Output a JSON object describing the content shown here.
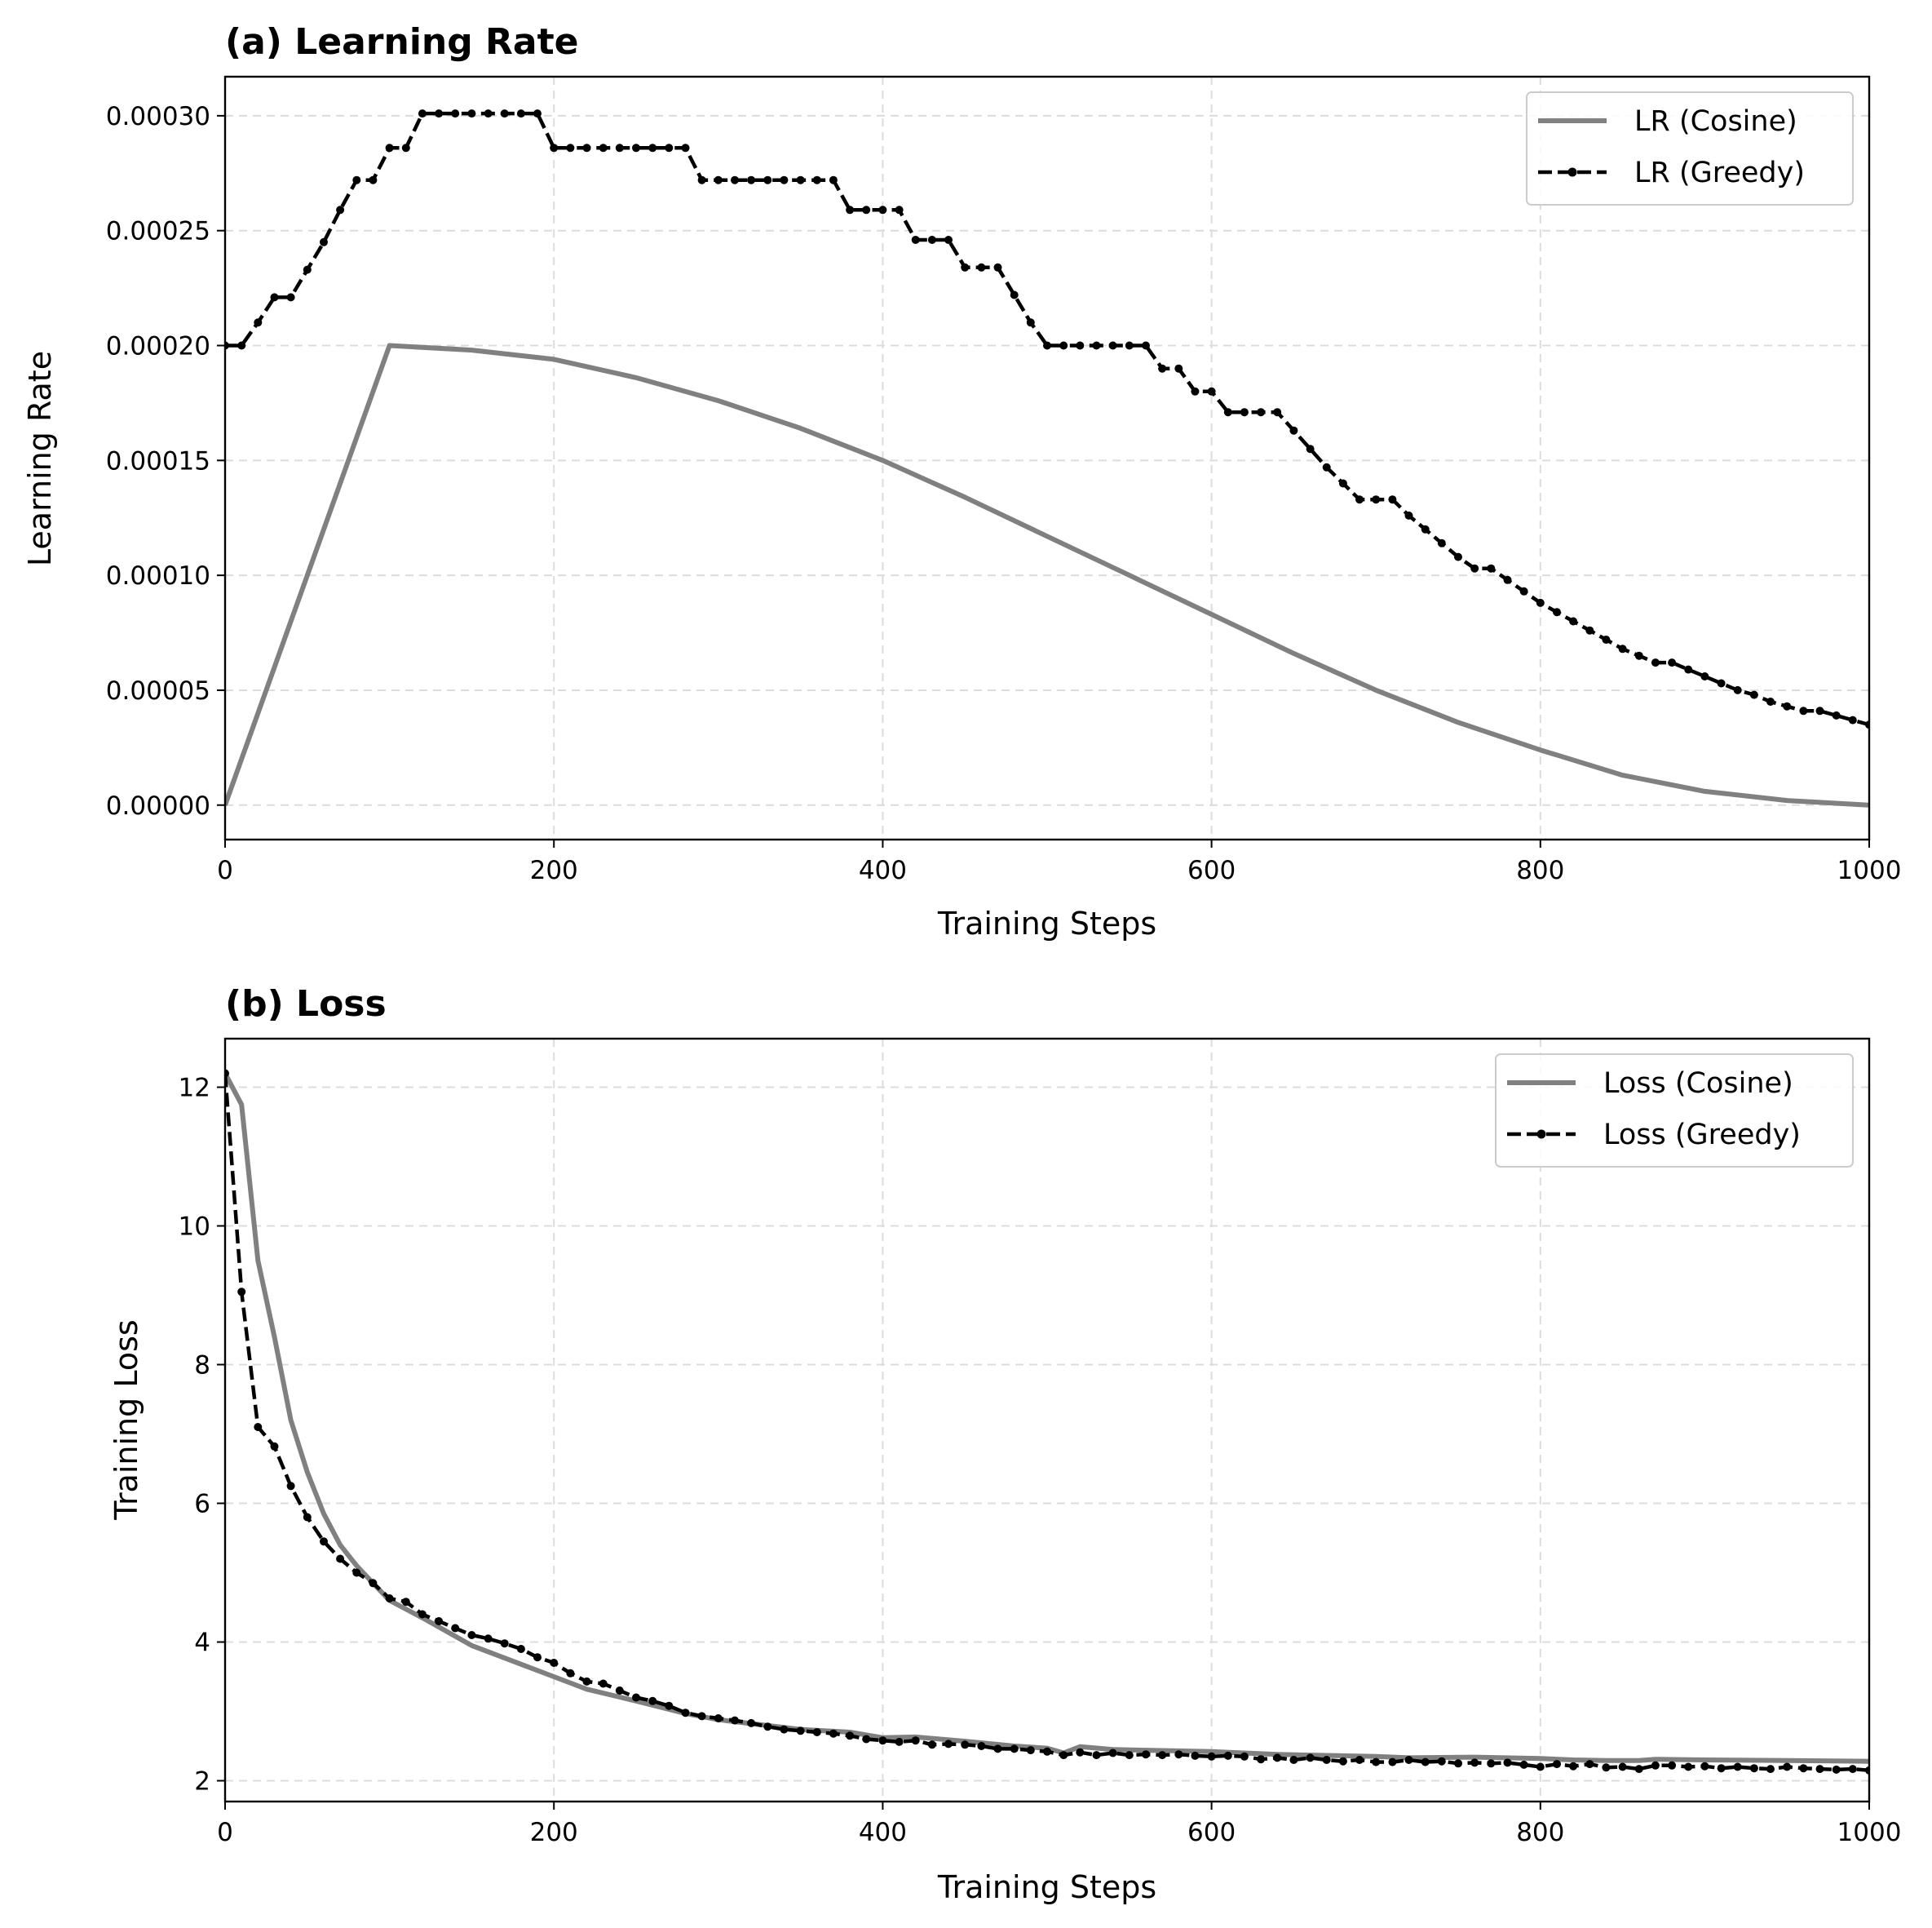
{
  "chart_data": [
    {
      "type": "line",
      "title": "(a) Learning Rate",
      "xlabel": "Training Steps",
      "ylabel": "Learning Rate",
      "xlim": [
        0,
        1000
      ],
      "ylim": [
        -1.5e-05,
        0.000317
      ],
      "grid": true,
      "legend_position": "top-right",
      "xticks": [
        0,
        200,
        400,
        600,
        800,
        1000
      ],
      "xtick_labels": [
        "0",
        "200",
        "400",
        "600",
        "800",
        "1000"
      ],
      "yticks": [
        0,
        5e-05,
        0.0001,
        0.00015,
        0.0002,
        0.00025,
        0.0003
      ],
      "ytick_labels": [
        "0.00000",
        "0.00005",
        "0.00010",
        "0.00015",
        "0.00020",
        "0.00025",
        "0.00030"
      ],
      "series": [
        {
          "name": "LR (Cosine)",
          "style": "solid",
          "color": "#808080",
          "x": [
            0,
            100,
            150,
            200,
            250,
            300,
            350,
            400,
            450,
            500,
            550,
            600,
            650,
            700,
            750,
            800,
            850,
            900,
            950,
            1000
          ],
          "y": [
            0,
            0.0002,
            0.000198,
            0.000194,
            0.000186,
            0.000176,
            0.000164,
            0.00015,
            0.000134,
            0.000117,
            0.0001,
            8.3e-05,
            6.6e-05,
            5e-05,
            3.6e-05,
            2.4e-05,
            1.3e-05,
            6e-06,
            2e-06,
            0
          ]
        },
        {
          "name": "LR (Greedy)",
          "style": "dashed-markers",
          "color": "#000000",
          "x": [
            0,
            10,
            20,
            30,
            40,
            50,
            60,
            70,
            80,
            90,
            100,
            110,
            120,
            130,
            140,
            150,
            160,
            170,
            180,
            190,
            200,
            210,
            220,
            230,
            240,
            250,
            260,
            270,
            280,
            290,
            300,
            310,
            320,
            330,
            340,
            350,
            360,
            370,
            380,
            390,
            400,
            410,
            420,
            430,
            440,
            450,
            460,
            470,
            480,
            490,
            500,
            510,
            520,
            530,
            540,
            550,
            560,
            570,
            580,
            590,
            600,
            610,
            620,
            630,
            640,
            650,
            660,
            670,
            680,
            690,
            700,
            710,
            720,
            730,
            740,
            750,
            760,
            770,
            780,
            790,
            800,
            810,
            820,
            830,
            840,
            850,
            860,
            870,
            880,
            890,
            900,
            910,
            920,
            930,
            940,
            950,
            960,
            970,
            980,
            990,
            1000
          ],
          "y": [
            0.0002,
            0.0002,
            0.00021,
            0.000221,
            0.000221,
            0.000233,
            0.000245,
            0.000259,
            0.000272,
            0.000272,
            0.000286,
            0.000286,
            0.000301,
            0.000301,
            0.000301,
            0.000301,
            0.000301,
            0.000301,
            0.000301,
            0.000301,
            0.000286,
            0.000286,
            0.000286,
            0.000286,
            0.000286,
            0.000286,
            0.000286,
            0.000286,
            0.000286,
            0.000272,
            0.000272,
            0.000272,
            0.000272,
            0.000272,
            0.000272,
            0.000272,
            0.000272,
            0.000272,
            0.000259,
            0.000259,
            0.000259,
            0.000259,
            0.000246,
            0.000246,
            0.000246,
            0.000234,
            0.000234,
            0.000234,
            0.000222,
            0.00021,
            0.0002,
            0.0002,
            0.0002,
            0.0002,
            0.0002,
            0.0002,
            0.0002,
            0.00019,
            0.00019,
            0.00018,
            0.00018,
            0.000171,
            0.000171,
            0.000171,
            0.000171,
            0.000163,
            0.000155,
            0.000147,
            0.00014,
            0.000133,
            0.000133,
            0.000133,
            0.000126,
            0.00012,
            0.000114,
            0.000108,
            0.000103,
            0.000103,
            9.8e-05,
            9.3e-05,
            8.8e-05,
            8.4e-05,
            8e-05,
            7.6e-05,
            7.2e-05,
            6.8e-05,
            6.5e-05,
            6.2e-05,
            6.2e-05,
            5.9e-05,
            5.6e-05,
            5.3e-05,
            5e-05,
            4.8e-05,
            4.5e-05,
            4.3e-05,
            4.1e-05,
            4.1e-05,
            3.9e-05,
            3.7e-05,
            3.5e-05
          ]
        }
      ]
    },
    {
      "type": "line",
      "title": "(b) Loss",
      "xlabel": "Training Steps",
      "ylabel": "Training Loss",
      "xlim": [
        0,
        1000
      ],
      "ylim": [
        1.7,
        12.7
      ],
      "grid": true,
      "legend_position": "top-right",
      "xticks": [
        0,
        200,
        400,
        600,
        800,
        1000
      ],
      "xtick_labels": [
        "0",
        "200",
        "400",
        "600",
        "800",
        "1000"
      ],
      "yticks": [
        2,
        4,
        6,
        8,
        10,
        12
      ],
      "ytick_labels": [
        "2",
        "4",
        "6",
        "8",
        "10",
        "12"
      ],
      "series": [
        {
          "name": "Loss (Cosine)",
          "style": "solid",
          "color": "#808080",
          "x": [
            0,
            10,
            20,
            30,
            40,
            50,
            60,
            70,
            80,
            90,
            100,
            120,
            150,
            200,
            220,
            250,
            280,
            300,
            350,
            380,
            400,
            420,
            450,
            480,
            500,
            510,
            520,
            540,
            560,
            600,
            620,
            640,
            660,
            700,
            720,
            760,
            800,
            820,
            840,
            860,
            870,
            900,
            950,
            1000
          ],
          "y": [
            12.2,
            11.75,
            9.5,
            8.4,
            7.2,
            6.45,
            5.85,
            5.4,
            5.1,
            4.85,
            4.6,
            4.35,
            3.95,
            3.5,
            3.32,
            3.15,
            2.97,
            2.88,
            2.74,
            2.7,
            2.62,
            2.63,
            2.57,
            2.5,
            2.47,
            2.4,
            2.49,
            2.45,
            2.44,
            2.42,
            2.4,
            2.38,
            2.37,
            2.35,
            2.33,
            2.34,
            2.32,
            2.3,
            2.29,
            2.29,
            2.31,
            2.3,
            2.29,
            2.28
          ]
        },
        {
          "name": "Loss (Greedy)",
          "style": "dashed-markers",
          "color": "#000000",
          "x": [
            0,
            10,
            20,
            30,
            40,
            50,
            60,
            70,
            80,
            90,
            100,
            110,
            120,
            130,
            140,
            150,
            160,
            170,
            180,
            190,
            200,
            210,
            220,
            230,
            240,
            250,
            260,
            270,
            280,
            290,
            300,
            310,
            320,
            330,
            340,
            350,
            360,
            370,
            380,
            390,
            400,
            410,
            420,
            430,
            440,
            450,
            460,
            470,
            480,
            490,
            500,
            510,
            520,
            530,
            540,
            550,
            560,
            570,
            580,
            590,
            600,
            610,
            620,
            630,
            640,
            650,
            660,
            670,
            680,
            690,
            700,
            710,
            720,
            730,
            740,
            750,
            760,
            770,
            780,
            790,
            800,
            810,
            820,
            830,
            840,
            850,
            860,
            870,
            880,
            890,
            900,
            910,
            920,
            930,
            940,
            950,
            960,
            970,
            980,
            990,
            1000
          ],
          "y": [
            12.2,
            9.05,
            7.1,
            6.82,
            6.25,
            5.8,
            5.45,
            5.2,
            5.0,
            4.85,
            4.63,
            4.58,
            4.4,
            4.3,
            4.2,
            4.1,
            4.05,
            3.98,
            3.9,
            3.78,
            3.7,
            3.55,
            3.43,
            3.4,
            3.3,
            3.2,
            3.15,
            3.08,
            2.98,
            2.93,
            2.9,
            2.87,
            2.83,
            2.78,
            2.74,
            2.72,
            2.7,
            2.68,
            2.65,
            2.6,
            2.58,
            2.56,
            2.58,
            2.52,
            2.53,
            2.52,
            2.5,
            2.46,
            2.46,
            2.44,
            2.42,
            2.37,
            2.41,
            2.37,
            2.4,
            2.37,
            2.38,
            2.37,
            2.38,
            2.36,
            2.35,
            2.36,
            2.35,
            2.31,
            2.33,
            2.3,
            2.33,
            2.3,
            2.28,
            2.3,
            2.27,
            2.27,
            2.3,
            2.27,
            2.28,
            2.25,
            2.26,
            2.25,
            2.26,
            2.23,
            2.2,
            2.24,
            2.21,
            2.24,
            2.19,
            2.2,
            2.17,
            2.22,
            2.22,
            2.2,
            2.21,
            2.18,
            2.2,
            2.18,
            2.17,
            2.2,
            2.18,
            2.17,
            2.16,
            2.17,
            2.15
          ]
        }
      ]
    }
  ]
}
